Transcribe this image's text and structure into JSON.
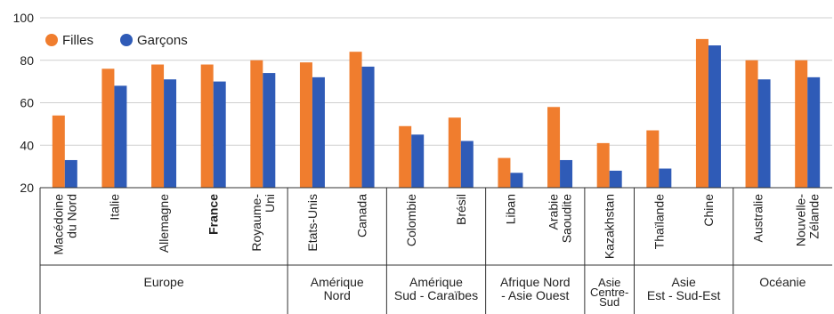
{
  "chart_data": {
    "type": "bar",
    "title": "",
    "xlabel": "",
    "ylabel": "",
    "ylim": [
      20,
      100
    ],
    "yticks": [
      20,
      40,
      60,
      80,
      100
    ],
    "grid": true,
    "legend_position": "top-left",
    "categories": [
      "Macédoine du Nord",
      "Italie",
      "Allemagne",
      "France",
      "Royaume-Uni",
      "Etats-Unis",
      "Canada",
      "Colombie",
      "Brésil",
      "Liban",
      "Arabie Saoudite",
      "Kazakhstan",
      "Thaïlande",
      "Chine",
      "Australie",
      "Nouvelle-Zélande"
    ],
    "category_labels": [
      [
        "Macédoine",
        "du Nord"
      ],
      [
        "Italie"
      ],
      [
        "Allemagne"
      ],
      [
        "France"
      ],
      [
        "Royaume-",
        "Uni"
      ],
      [
        "Etats-Unis"
      ],
      [
        "Canada"
      ],
      [
        "Colombie"
      ],
      [
        "Brésil"
      ],
      [
        "Liban"
      ],
      [
        "Arabie",
        "Saoudite"
      ],
      [
        "Kazakhstan"
      ],
      [
        "Thaïlande"
      ],
      [
        "Chine"
      ],
      [
        "Australie"
      ],
      [
        "Nouvelle-",
        "Zélande"
      ]
    ],
    "bold_category": "France",
    "series": [
      {
        "name": "Filles",
        "color": "#F07D2E",
        "values": [
          54,
          76,
          78,
          78,
          80,
          79,
          84,
          49,
          53,
          34,
          58,
          41,
          47,
          90,
          80,
          80
        ]
      },
      {
        "name": "Garçons",
        "color": "#2F5BB7",
        "values": [
          33,
          68,
          71,
          70,
          74,
          72,
          77,
          45,
          42,
          27,
          33,
          28,
          29,
          87,
          71,
          72
        ]
      }
    ],
    "groups": [
      {
        "label": [
          "Europe"
        ],
        "count": 5
      },
      {
        "label": [
          "Amérique",
          "Nord"
        ],
        "count": 2
      },
      {
        "label": [
          "Amérique",
          "Sud - Caraïbes"
        ],
        "count": 2
      },
      {
        "label": [
          "Afrique Nord",
          "- Asie Ouest"
        ],
        "count": 2
      },
      {
        "label": [
          "Asie",
          "Centre-",
          "Sud"
        ],
        "count": 1
      },
      {
        "label": [
          "Asie",
          "Est - Sud-Est"
        ],
        "count": 2
      },
      {
        "label": [
          "Océanie"
        ],
        "count": 2
      }
    ]
  }
}
